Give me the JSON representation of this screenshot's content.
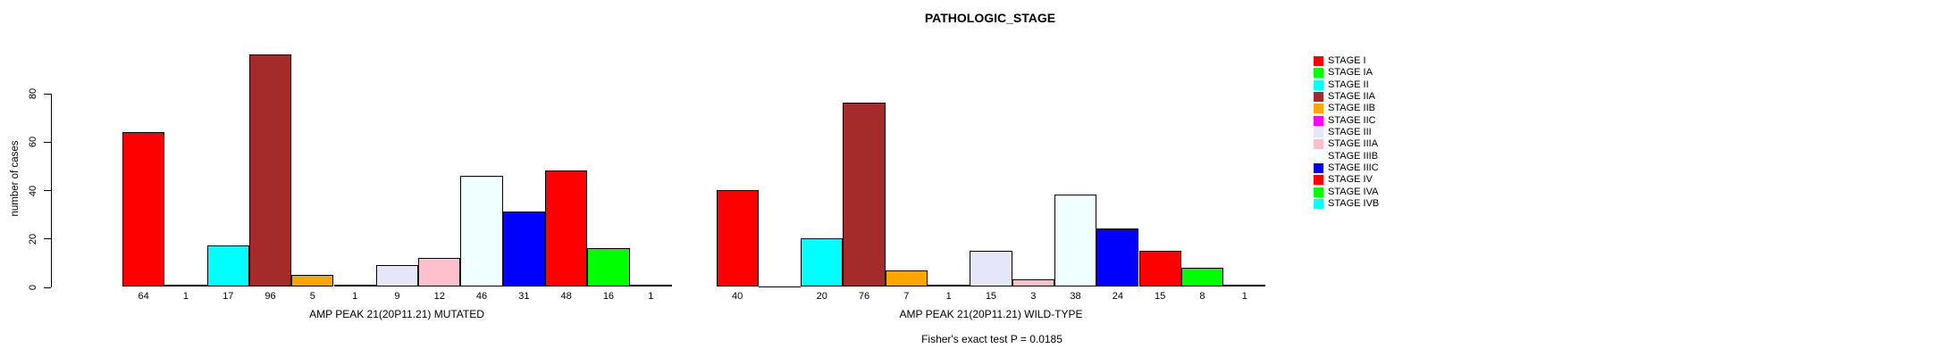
{
  "title": "PATHOLOGIC_STAGE",
  "footer": "Fisher's exact test P = 0.0185",
  "chart_data": {
    "type": "bar",
    "title": "PATHOLOGIC_STAGE",
    "ylabel": "number of cases",
    "xlabel": "",
    "yticks": [
      0,
      20,
      40,
      60,
      80
    ],
    "ylim": [
      0,
      96
    ],
    "grid": false,
    "bar_outline_color": "#000000",
    "value_labels_shown": true,
    "zero_value_labels_hidden": true,
    "categories": [
      "STAGE I",
      "STAGE IA",
      "STAGE II",
      "STAGE IIA",
      "STAGE IIB",
      "STAGE IIC",
      "STAGE III",
      "STAGE IIIA",
      "STAGE IIIB",
      "STAGE IIIC",
      "STAGE IV",
      "STAGE IVA",
      "STAGE IVB"
    ],
    "colors": [
      "#FF0000",
      "#00FF00",
      "#00FFFF",
      "#A52A2A",
      "#FFA500",
      "#FF00FF",
      "#E6E6FA",
      "#FFC0CB",
      "#F0FFFF",
      "#0000FF",
      "#FF0000",
      "#00FF00",
      "#00FFFF"
    ],
    "groups": [
      {
        "label": "AMP PEAK 21(20P11.21) MUTATED",
        "values": [
          64,
          1,
          17,
          96,
          5,
          1,
          9,
          12,
          46,
          31,
          48,
          16,
          1
        ]
      },
      {
        "label": "AMP PEAK 21(20P11.21) WILD-TYPE",
        "values": [
          40,
          0,
          20,
          76,
          7,
          1,
          15,
          3,
          38,
          24,
          15,
          8,
          1
        ]
      }
    ],
    "legend": {
      "position": "right",
      "entries": [
        {
          "label": "STAGE I",
          "color": "#FF0000"
        },
        {
          "label": "STAGE IA",
          "color": "#00FF00"
        },
        {
          "label": "STAGE II",
          "color": "#00FFFF"
        },
        {
          "label": "STAGE IIA",
          "color": "#A52A2A"
        },
        {
          "label": "STAGE IIB",
          "color": "#FFA500"
        },
        {
          "label": "STAGE IIC",
          "color": "#FF00FF"
        },
        {
          "label": "STAGE III",
          "color": "#E6E6FA"
        },
        {
          "label": "STAGE IIIA",
          "color": "#FFC0CB"
        },
        {
          "label": "STAGE IIIB",
          "color": "#F0FFFF"
        },
        {
          "label": "STAGE IIIC",
          "color": "#0000FF"
        },
        {
          "label": "STAGE IV",
          "color": "#FF0000"
        },
        {
          "label": "STAGE IVA",
          "color": "#00FF00"
        },
        {
          "label": "STAGE IVB",
          "color": "#00FFFF"
        }
      ]
    }
  }
}
